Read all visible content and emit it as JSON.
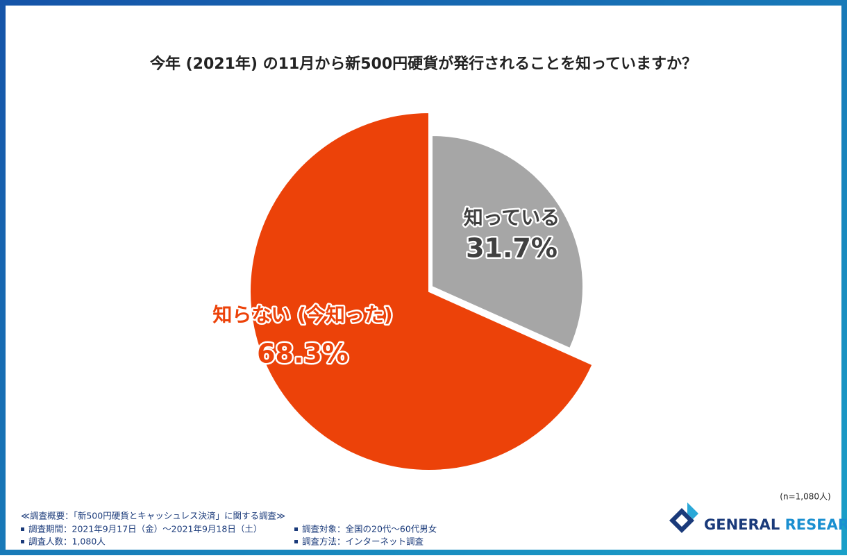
{
  "chart_data": {
    "type": "pie",
    "title": "今年 (2021年) の11月から新500円硬貨が発行されることを知っていますか？",
    "categories": [
      "知っている",
      "知らない (今知った)"
    ],
    "values": [
      31.7,
      68.3
    ],
    "value_labels": [
      "31.7%",
      "68.3%"
    ],
    "colors": [
      "#a6a6a6",
      "#ec4209"
    ],
    "label_colors": [
      "#404040",
      "#ec4209"
    ],
    "note": "(n=1,080人)"
  },
  "survey": {
    "heading": "≪調査概要：「新500円硬貨とキャッシュレス決済」に関する調査≫",
    "items": [
      "調査期間：2021年9月17日（金）～2021年9月18日（土）",
      "調査人数：1,080人",
      "調査対象：全国の20代～60代男女",
      "調査方法：インターネット調査"
    ]
  },
  "logo": {
    "first": "GENERAL",
    "second": "RESEARCH"
  }
}
